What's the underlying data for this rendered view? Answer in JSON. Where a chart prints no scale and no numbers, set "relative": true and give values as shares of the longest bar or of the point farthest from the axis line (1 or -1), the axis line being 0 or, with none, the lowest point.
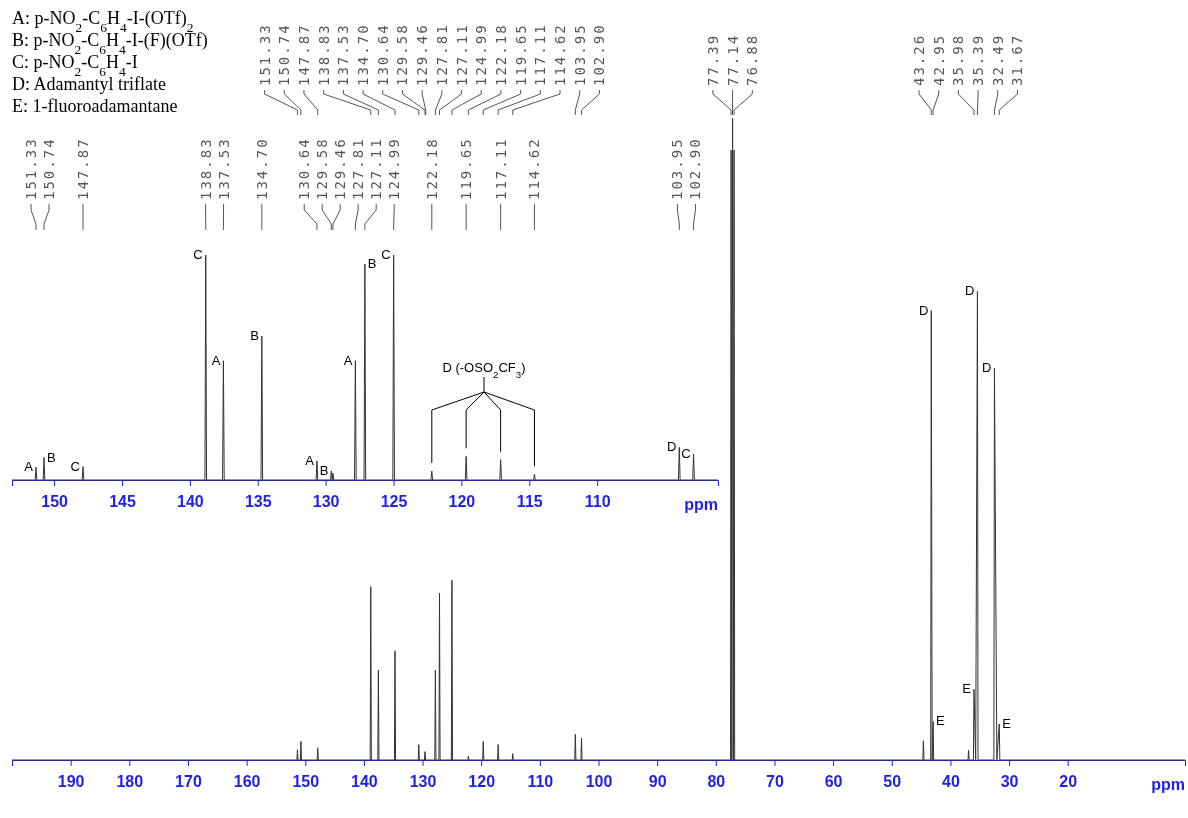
{
  "chart_data": [
    {
      "type": "line",
      "relative": true,
      "xlim": [
        153.1,
        101.1
      ],
      "xticks": [
        150,
        145,
        140,
        135,
        130,
        125,
        120,
        115,
        110
      ],
      "xlabel": "ppm",
      "series": [
        {
          "color": "#333333",
          "x": [
            153.1,
            151.39,
            151.33,
            151.27,
            150.8,
            150.74,
            150.68,
            147.93,
            147.87,
            147.81,
            138.89,
            138.83,
            138.77,
            137.59,
            137.53,
            137.47,
            134.76,
            134.7,
            134.64,
            130.7,
            130.64,
            130.58,
            129.64,
            129.58,
            129.52,
            129.46,
            129.4,
            127.87,
            127.81,
            127.75,
            127.17,
            127.11,
            127.05,
            125.05,
            124.99,
            124.93,
            122.24,
            122.18,
            122.12,
            119.71,
            119.65,
            119.59,
            117.17,
            117.11,
            117.05,
            114.68,
            114.62,
            114.56,
            104.01,
            103.95,
            103.89,
            102.96,
            102.9,
            102.84,
            101.1
          ],
          "values": [
            0,
            0,
            0.057,
            0,
            0,
            0.1,
            0,
            0,
            0.06,
            0,
            0,
            1.0,
            0,
            0,
            0.53,
            0,
            0,
            0.64,
            0,
            0,
            0.085,
            0,
            0,
            0.04,
            0,
            0.03,
            0,
            0,
            0.53,
            0,
            0,
            0.96,
            0,
            0,
            1.0,
            0,
            0,
            0.04,
            0,
            0,
            0.105,
            0,
            0,
            0.09,
            0,
            0,
            0.025,
            0,
            0,
            0.145,
            0,
            0,
            0.115,
            0,
            0
          ]
        }
      ],
      "annotations": [
        {
          "text": "151.33",
          "x": 151.33
        },
        {
          "text": "150.74",
          "x": 150.74
        },
        {
          "text": "147.87",
          "x": 147.87
        },
        {
          "text": "138.83",
          "x": 138.83
        },
        {
          "text": "137.53",
          "x": 137.53
        },
        {
          "text": "134.70",
          "x": 134.7
        },
        {
          "text": "130.64",
          "x": 130.64
        },
        {
          "text": "129.58",
          "x": 129.58
        },
        {
          "text": "129.46",
          "x": 129.46
        },
        {
          "text": "127.81",
          "x": 127.81
        },
        {
          "text": "127.11",
          "x": 127.11
        },
        {
          "text": "124.99",
          "x": 124.99
        },
        {
          "text": "122.18",
          "x": 122.18
        },
        {
          "text": "119.65",
          "x": 119.65
        },
        {
          "text": "117.11",
          "x": 117.11
        },
        {
          "text": "114.62",
          "x": 114.62
        },
        {
          "text": "103.95",
          "x": 103.95
        },
        {
          "text": "102.90",
          "x": 102.9
        },
        {
          "text": "A",
          "x": 151.33,
          "y": 0.057
        },
        {
          "text": "B",
          "x": 150.74,
          "y": 0.1
        },
        {
          "text": "C",
          "x": 147.87,
          "y": 0.06
        },
        {
          "text": "C",
          "x": 138.83,
          "y": 1.0
        },
        {
          "text": "A",
          "x": 137.53,
          "y": 0.53
        },
        {
          "text": "B",
          "x": 134.7,
          "y": 0.64
        },
        {
          "text": "A",
          "x": 130.64,
          "y": 0.085
        },
        {
          "text": "B",
          "x": 129.58,
          "y": 0.04
        },
        {
          "text": "A",
          "x": 127.81,
          "y": 0.53
        },
        {
          "text": "B",
          "x": 127.11,
          "y": 0.96
        },
        {
          "text": "C",
          "x": 124.99,
          "y": 1.0
        },
        {
          "text": "D",
          "x": 103.95,
          "y": 0.145
        },
        {
          "text": "C",
          "x": 102.9,
          "y": 0.115
        },
        "D (-OSO$_{2}$CF$_{3}$)"
      ]
    },
    {
      "type": "line",
      "relative": true,
      "xlim": [
        200,
        0
      ],
      "xticks": [
        190,
        180,
        170,
        160,
        150,
        140,
        130,
        120,
        110,
        100,
        90,
        80,
        70,
        60,
        50,
        40,
        30,
        20
      ],
      "xlabel": "ppm",
      "series": [
        {
          "color": "#333333",
          "x": [
            200,
            151.43,
            151.33,
            151.23,
            150.84,
            150.74,
            150.64,
            147.97,
            147.87,
            147.77,
            138.93,
            138.83,
            138.73,
            137.63,
            137.53,
            137.43,
            134.8,
            134.7,
            134.6,
            130.74,
            130.64,
            130.54,
            129.68,
            129.58,
            129.48,
            127.91,
            127.81,
            127.71,
            127.21,
            127.11,
            127.01,
            125.09,
            124.99,
            124.89,
            122.28,
            122.18,
            122.08,
            119.75,
            119.65,
            119.55,
            117.21,
            117.11,
            117.01,
            114.72,
            114.62,
            114.52,
            104.05,
            103.95,
            103.85,
            103.0,
            102.9,
            102.8,
            77.49,
            77.39,
            77.27,
            77.14,
            77.01,
            76.88,
            76.78,
            44.7,
            44.6,
            44.5,
            43.36,
            43.26,
            43.11,
            42.95,
            42.85,
            37.0,
            36.9,
            36.8,
            36.08,
            35.98,
            35.69,
            35.39,
            35.29,
            32.59,
            32.49,
            32.08,
            31.67,
            31.57,
            0
          ],
          "values": [
            0,
            0,
            0.016,
            0,
            0,
            0.029,
            0,
            0,
            0.019,
            0,
            0,
            0.27,
            0,
            0,
            0.14,
            0,
            0,
            0.17,
            0,
            0,
            0.024,
            0,
            0,
            0.013,
            0,
            0,
            0.14,
            0,
            0,
            0.26,
            0,
            0,
            0.28,
            0,
            0,
            0.006,
            0,
            0,
            0.029,
            0,
            0,
            0.024,
            0,
            0,
            0.01,
            0,
            0,
            0.04,
            0,
            0,
            0.034,
            0,
            0,
            0.95,
            0,
            1.0,
            0,
            0.95,
            0,
            0,
            0.03,
            0,
            0,
            0.7,
            0,
            0.06,
            0,
            0,
            0.015,
            0,
            0,
            0.11,
            0,
            0.73,
            0,
            0,
            0.61,
            0,
            0.056,
            0,
            0
          ]
        }
      ],
      "annotations": [
        "A: p-NO$_{2}$-C$_{6}$H$_{4}$-I-(OTf)$_{2}$",
        "B: p-NO$_{2}$-C$_{6}$H$_{4}$-I-(F)(OTf)",
        "C: p-NO$_{2}$-C$_{6}$H$_{4}$-I",
        "D: Adamantyl triflate",
        "E: 1-fluoroadamantane",
        {
          "text": "151.33",
          "x": 151.33
        },
        {
          "text": "150.74",
          "x": 150.74
        },
        {
          "text": "147.87",
          "x": 147.87
        },
        {
          "text": "138.83",
          "x": 138.83
        },
        {
          "text": "137.53",
          "x": 137.53
        },
        {
          "text": "134.70",
          "x": 134.7
        },
        {
          "text": "130.64",
          "x": 130.64
        },
        {
          "text": "129.58",
          "x": 129.58
        },
        {
          "text": "129.46",
          "x": 129.46
        },
        {
          "text": "127.81",
          "x": 127.81
        },
        {
          "text": "127.11",
          "x": 127.11
        },
        {
          "text": "124.99",
          "x": 124.99
        },
        {
          "text": "122.18",
          "x": 122.18
        },
        {
          "text": "119.65",
          "x": 119.65
        },
        {
          "text": "117.11",
          "x": 117.11
        },
        {
          "text": "114.62",
          "x": 114.62
        },
        {
          "text": "103.95",
          "x": 103.95
        },
        {
          "text": "102.90",
          "x": 102.9
        },
        {
          "text": "77.39",
          "x": 77.39
        },
        {
          "text": "77.14",
          "x": 77.14
        },
        {
          "text": "76.88",
          "x": 76.88
        },
        {
          "text": "43.26",
          "x": 43.26
        },
        {
          "text": "42.95",
          "x": 42.95
        },
        {
          "text": "35.98",
          "x": 35.98
        },
        {
          "text": "35.39",
          "x": 35.39
        },
        {
          "text": "32.49",
          "x": 32.49
        },
        {
          "text": "31.67",
          "x": 31.67
        },
        {
          "text": "D",
          "x": 43.26,
          "y": 0.7
        },
        {
          "text": "E",
          "x": 42.95,
          "y": 0.06
        },
        {
          "text": "E",
          "x": 35.98,
          "y": 0.11
        },
        {
          "text": "D",
          "x": 35.39,
          "y": 0.73
        },
        {
          "text": "D",
          "x": 32.49,
          "y": 0.61
        },
        {
          "text": "E",
          "x": 31.67,
          "y": 0.056
        }
      ]
    }
  ]
}
